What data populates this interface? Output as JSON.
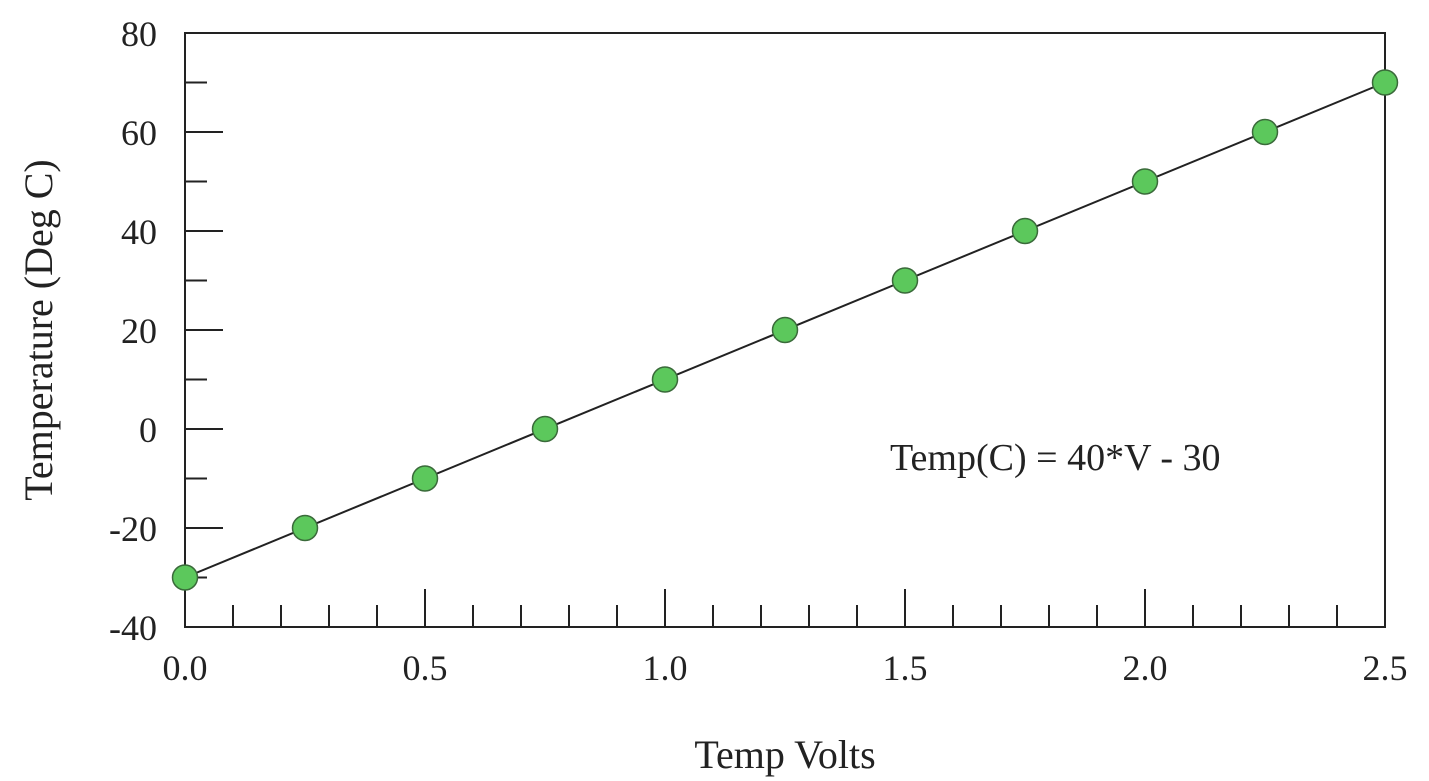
{
  "chart_data": {
    "type": "scatter",
    "title": "",
    "xlabel": "Temp Volts",
    "ylabel": "Temperature (Deg C)",
    "xlim": [
      0,
      2.5
    ],
    "ylim": [
      -40,
      80
    ],
    "x_ticks": [
      "0.0",
      "0.5",
      "1.0",
      "1.5",
      "2.0",
      "2.5"
    ],
    "y_ticks": [
      "-40",
      "-20",
      "0",
      "20",
      "40",
      "60",
      "80"
    ],
    "grid": false,
    "legend": "none",
    "annotation": "Temp(C) = 40*V - 30",
    "series": [
      {
        "x": [
          0.0,
          0.25,
          0.5,
          0.75,
          1.0,
          1.25,
          1.5,
          1.75,
          2.0,
          2.25,
          2.5
        ],
        "y": [
          -30,
          -20,
          -10,
          0,
          10,
          20,
          30,
          40,
          50,
          60,
          70
        ],
        "color": "#5cc85c"
      }
    ],
    "fit_line": {
      "x": [
        0.0,
        2.5
      ],
      "y": [
        -30,
        70
      ],
      "color": "#222222"
    }
  }
}
